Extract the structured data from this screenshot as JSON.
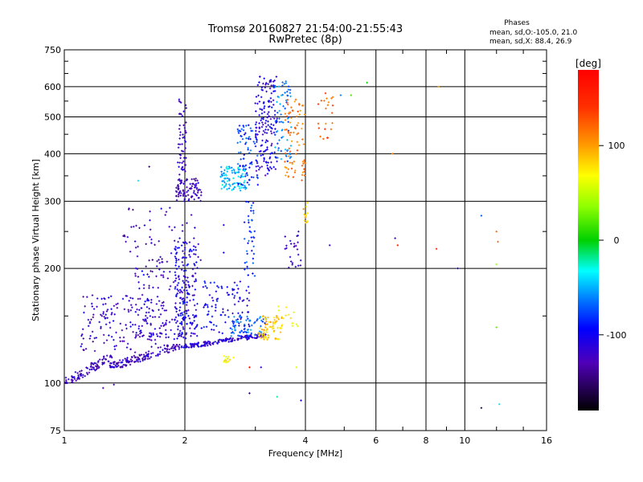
{
  "chart_data": {
    "type": "scatter",
    "title": "Tromsø 20160827 21:54:00-21:55:43",
    "subtitle": "RwPretec (8p)",
    "xlabel": "Frequency [MHz]",
    "ylabel": "Stationary phase Virtual Height [km]",
    "x_scale": "log",
    "y_scale": "log",
    "xlim": [
      1,
      16
    ],
    "ylim": [
      75,
      750
    ],
    "x_ticks": [
      1,
      2,
      4,
      6,
      8,
      10,
      16
    ],
    "x_tick_labels": [
      "1",
      "2",
      "4",
      "6",
      "8",
      "10",
      "16"
    ],
    "y_ticks": [
      75,
      100,
      200,
      300,
      400,
      500,
      600,
      750
    ],
    "y_tick_labels": [
      "75",
      "100",
      "200",
      "300",
      "400",
      "500",
      "600",
      "750"
    ],
    "grid": true,
    "info": {
      "heading": "Phases",
      "line1": "mean, sd,O:-105.0, 21.0",
      "line2": "mean, sd,X:  88.4, 26.9"
    },
    "colorbar": {
      "label": "[deg]",
      "range": [
        -180,
        180
      ],
      "ticks": [
        100,
        0,
        -100
      ],
      "tick_labels": [
        "100",
        "0",
        "-100"
      ]
    },
    "clusters": [
      {
        "f": [
          1.0,
          1.32
        ],
        "h": [
          100,
          118
        ],
        "phase": -125,
        "n": 90,
        "trend": true
      },
      {
        "f": [
          1.3,
          1.95
        ],
        "h": [
          110,
          126
        ],
        "phase": -125,
        "n": 140,
        "trend": true
      },
      {
        "f": [
          1.95,
          3.2
        ],
        "h": [
          124,
          134
        ],
        "phase": -115,
        "n": 150,
        "trend": true
      },
      {
        "f": [
          1.1,
          1.8
        ],
        "h": [
          120,
          170
        ],
        "phase": -120,
        "n": 160
      },
      {
        "f": [
          1.5,
          2.1
        ],
        "h": [
          130,
          200
        ],
        "phase": -115,
        "n": 120
      },
      {
        "f": [
          1.88,
          2.15
        ],
        "h": [
          130,
          240
        ],
        "phase": -105,
        "n": 170
      },
      {
        "f": [
          2.2,
          2.9
        ],
        "h": [
          135,
          185
        ],
        "phase": -100,
        "n": 100
      },
      {
        "f": [
          2.6,
          3.2
        ],
        "h": [
          132,
          150
        ],
        "phase": -70,
        "n": 60
      },
      {
        "f": [
          3.05,
          3.5
        ],
        "h": [
          130,
          150
        ],
        "phase": 85,
        "n": 70
      },
      {
        "f": [
          3.3,
          3.85
        ],
        "h": [
          140,
          160
        ],
        "phase": 75,
        "n": 18
      },
      {
        "f": [
          1.4,
          2.2
        ],
        "h": [
          200,
          290
        ],
        "phase": -125,
        "n": 60
      },
      {
        "f": [
          1.9,
          2.2
        ],
        "h": [
          300,
          345
        ],
        "phase": -125,
        "n": 90
      },
      {
        "f": [
          1.92,
          2.02
        ],
        "h": [
          350,
          560
        ],
        "phase": -120,
        "n": 55
      },
      {
        "f": [
          2.45,
          2.85
        ],
        "h": [
          320,
          370
        ],
        "phase": -45,
        "n": 90
      },
      {
        "f": [
          2.7,
          3.05
        ],
        "h": [
          330,
          480
        ],
        "phase": -80,
        "n": 80
      },
      {
        "f": [
          3.0,
          3.4
        ],
        "h": [
          350,
          640
        ],
        "phase": -110,
        "n": 160
      },
      {
        "f": [
          3.35,
          3.7
        ],
        "h": [
          380,
          620
        ],
        "phase": -65,
        "n": 70
      },
      {
        "f": [
          3.55,
          4.0
        ],
        "h": [
          340,
          560
        ],
        "phase": 115,
        "n": 80
      },
      {
        "f": [
          2.8,
          3.0
        ],
        "h": [
          190,
          300
        ],
        "phase": -80,
        "n": 40
      },
      {
        "f": [
          3.5,
          3.9
        ],
        "h": [
          200,
          250
        ],
        "phase": -120,
        "n": 25
      },
      {
        "f": [
          3.95,
          4.05
        ],
        "h": [
          255,
          300
        ],
        "phase": 90,
        "n": 14
      },
      {
        "f": [
          4.3,
          4.7
        ],
        "h": [
          420,
          600
        ],
        "phase": 125,
        "n": 22
      },
      {
        "f": [
          2.5,
          2.65
        ],
        "h": [
          113,
          118
        ],
        "phase": 70,
        "n": 14
      }
    ],
    "extra_points": [
      {
        "x": 5.7,
        "y": 615,
        "phase": 0
      },
      {
        "x": 5.2,
        "y": 570,
        "phase": 20
      },
      {
        "x": 4.9,
        "y": 570,
        "phase": -60
      },
      {
        "x": 6.6,
        "y": 400,
        "phase": 110
      },
      {
        "x": 8.6,
        "y": 600,
        "phase": 100
      },
      {
        "x": 4.6,
        "y": 230,
        "phase": -120
      },
      {
        "x": 6.7,
        "y": 240,
        "phase": -120
      },
      {
        "x": 6.8,
        "y": 230,
        "phase": 150
      },
      {
        "x": 8.5,
        "y": 225,
        "phase": 150
      },
      {
        "x": 9.6,
        "y": 200,
        "phase": -110
      },
      {
        "x": 11.0,
        "y": 275,
        "phase": -70
      },
      {
        "x": 12.0,
        "y": 250,
        "phase": 120
      },
      {
        "x": 12.1,
        "y": 235,
        "phase": 120
      },
      {
        "x": 12.0,
        "y": 205,
        "phase": 40
      },
      {
        "x": 12.0,
        "y": 140,
        "phase": 25
      },
      {
        "x": 3.8,
        "y": 110,
        "phase": 60
      },
      {
        "x": 2.9,
        "y": 110,
        "phase": 170
      },
      {
        "x": 3.1,
        "y": 110,
        "phase": -120
      },
      {
        "x": 3.4,
        "y": 92,
        "phase": -20
      },
      {
        "x": 2.9,
        "y": 94,
        "phase": -150
      },
      {
        "x": 3.9,
        "y": 90,
        "phase": -110
      },
      {
        "x": 11.0,
        "y": 86,
        "phase": -160
      },
      {
        "x": 12.2,
        "y": 88,
        "phase": -40
      },
      {
        "x": 1.25,
        "y": 97,
        "phase": -130
      },
      {
        "x": 1.33,
        "y": 99,
        "phase": -120
      },
      {
        "x": 1.53,
        "y": 340,
        "phase": -40
      },
      {
        "x": 1.63,
        "y": 370,
        "phase": -140
      },
      {
        "x": 2.5,
        "y": 260,
        "phase": -100
      },
      {
        "x": 2.5,
        "y": 220,
        "phase": -90
      }
    ]
  }
}
